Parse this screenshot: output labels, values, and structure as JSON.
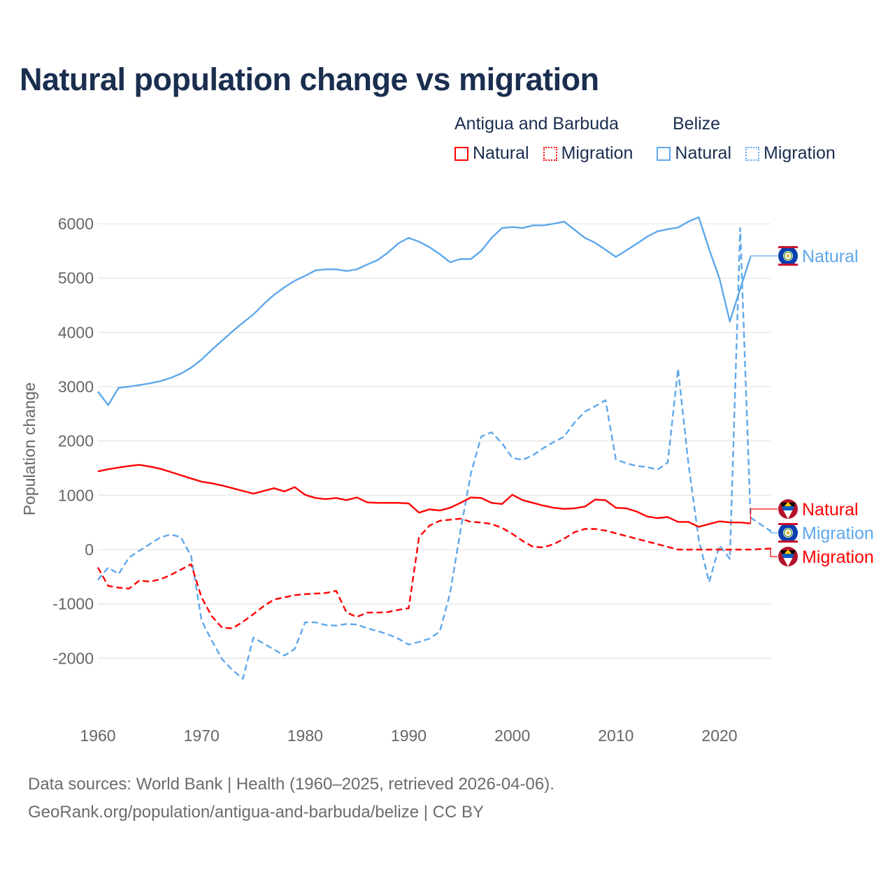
{
  "chart_data": {
    "type": "line",
    "title": "Natural population change vs migration",
    "xlabel": "",
    "ylabel": "Population change",
    "xlim": [
      1960,
      2025
    ],
    "ylim": [
      -2500,
      6300
    ],
    "grid": true,
    "yticks": [
      -2000,
      -1000,
      0,
      1000,
      2000,
      3000,
      4000,
      5000,
      6000
    ],
    "xticks": [
      1960,
      1970,
      1980,
      1990,
      2000,
      2010,
      2020
    ],
    "legend": {
      "placement": "top-right",
      "groups": [
        {
          "name": "Antigua and Barbuda",
          "items": [
            "Natural",
            "Migration"
          ]
        },
        {
          "name": "Belize",
          "items": [
            "Natural",
            "Migration"
          ]
        }
      ]
    },
    "colors": {
      "antigua": "#ff0000",
      "belize": "#5ea8ec"
    },
    "series": [
      {
        "name": "Natural",
        "country": "Belize",
        "color": "#5ea8ec",
        "style": "solid",
        "x_start": 1960,
        "values": [
          2910,
          2660,
          2980,
          3000,
          3030,
          3060,
          3100,
          3160,
          3240,
          3350,
          3500,
          3680,
          3850,
          4020,
          4180,
          4330,
          4520,
          4690,
          4830,
          4950,
          5040,
          5140,
          5160,
          5160,
          5130,
          5160,
          5250,
          5330,
          5470,
          5640,
          5740,
          5670,
          5570,
          5440,
          5290,
          5350,
          5350,
          5500,
          5740,
          5920,
          5940,
          5920,
          5970,
          5970,
          6000,
          6040,
          5890,
          5740,
          5650,
          5520,
          5390,
          5510,
          5630,
          5760,
          5860,
          5900,
          5930,
          6040,
          6120,
          5530,
          4990,
          4200,
          4800,
          5390
        ],
        "label": "Natural"
      },
      {
        "name": "Migration",
        "country": "Belize",
        "color": "#5ea8ec",
        "style": "dashed",
        "x_start": 1960,
        "values": [
          -560,
          -330,
          -450,
          -150,
          -20,
          100,
          220,
          280,
          230,
          -120,
          -1300,
          -1680,
          -2020,
          -2220,
          -2380,
          -1620,
          -1730,
          -1840,
          -1950,
          -1830,
          -1340,
          -1340,
          -1390,
          -1400,
          -1370,
          -1380,
          -1450,
          -1500,
          -1560,
          -1640,
          -1750,
          -1700,
          -1640,
          -1510,
          -800,
          350,
          1400,
          2080,
          2160,
          1960,
          1690,
          1650,
          1740,
          1870,
          1980,
          2080,
          2340,
          2540,
          2640,
          2750,
          1660,
          1590,
          1540,
          1520,
          1470,
          1600,
          3330,
          1590,
          180,
          -600,
          80,
          -170,
          5920,
          590,
          460,
          335
        ],
        "label": "Migration"
      },
      {
        "name": "Natural",
        "country": "Antigua and Barbuda",
        "color": "#ff0000",
        "style": "solid",
        "x_start": 1960,
        "values": [
          1440,
          1480,
          1510,
          1540,
          1560,
          1530,
          1490,
          1430,
          1370,
          1310,
          1250,
          1220,
          1180,
          1130,
          1080,
          1030,
          1080,
          1130,
          1070,
          1150,
          1010,
          950,
          930,
          950,
          910,
          960,
          870,
          860,
          860,
          860,
          850,
          680,
          740,
          720,
          770,
          860,
          960,
          950,
          860,
          840,
          1010,
          910,
          860,
          810,
          770,
          750,
          760,
          790,
          920,
          910,
          770,
          760,
          700,
          610,
          580,
          600,
          510,
          510,
          420,
          470,
          520,
          500,
          500,
          480
        ],
        "label": "Natural"
      },
      {
        "name": "Migration",
        "country": "Antigua and Barbuda",
        "color": "#ff0000",
        "style": "dashed",
        "x_start": 1960,
        "values": [
          -330,
          -670,
          -700,
          -720,
          -570,
          -590,
          -550,
          -470,
          -370,
          -270,
          -880,
          -1230,
          -1440,
          -1450,
          -1330,
          -1190,
          -1040,
          -920,
          -880,
          -840,
          -820,
          -810,
          -800,
          -760,
          -1160,
          -1240,
          -1160,
          -1160,
          -1150,
          -1110,
          -1080,
          230,
          440,
          530,
          550,
          570,
          510,
          500,
          470,
          400,
          290,
          160,
          50,
          40,
          100,
          200,
          320,
          380,
          380,
          350,
          300,
          250,
          200,
          150,
          100,
          50,
          0,
          0,
          0,
          0,
          0,
          0,
          0,
          0,
          10,
          20
        ],
        "label": "Migration"
      }
    ]
  },
  "footer": {
    "line1": "Data sources: World Bank | Health (1960–2025, retrieved 2026-04-06).",
    "line2": "GeoRank.org/population/antigua-and-barbuda/belize | CC BY"
  }
}
